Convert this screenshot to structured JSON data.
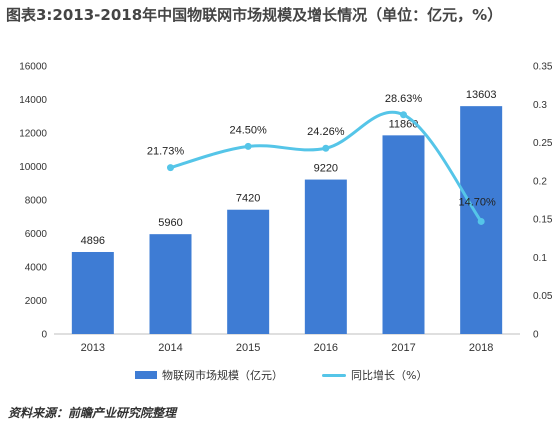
{
  "page": {
    "title": "图表3:2013-2018年中国物联网市场规模及增长情况（单位：亿元，%）",
    "source": "资料来源：前瞻产业研究院整理"
  },
  "colors": {
    "bar": "#3E7CD4",
    "line": "#55C5E8",
    "axis": "#BFBFBF"
  },
  "chart_data": {
    "type": "bar",
    "categories": [
      "2013",
      "2014",
      "2015",
      "2016",
      "2017",
      "2018"
    ],
    "series": [
      {
        "name": "物联网市场规模（亿元）",
        "type": "bar",
        "axis": "left",
        "values": [
          4896,
          5960,
          7420,
          9220,
          11860,
          13603
        ],
        "labels": [
          "4896",
          "5960",
          "7420",
          "9220",
          "11860",
          "13603"
        ]
      },
      {
        "name": "同比增长（%）",
        "type": "line",
        "axis": "right",
        "values": [
          null,
          0.2173,
          0.245,
          0.2426,
          0.2863,
          0.147
        ],
        "labels": [
          "",
          "21.73%",
          "24.50%",
          "24.26%",
          "28.63%",
          "14.70%"
        ]
      }
    ],
    "y_left": {
      "ylim": [
        0,
        16000
      ],
      "ticks": [
        "0",
        "2000",
        "4000",
        "6000",
        "8000",
        "10000",
        "12000",
        "14000",
        "16000"
      ]
    },
    "y_right": {
      "ylim": [
        0,
        0.35
      ],
      "ticks": [
        "0",
        "0.05",
        "0.1",
        "0.15",
        "0.2",
        "0.25",
        "0.3",
        "0.35"
      ]
    },
    "legend_position": "bottom",
    "grid": false,
    "xlabel": "",
    "ylabel": ""
  }
}
